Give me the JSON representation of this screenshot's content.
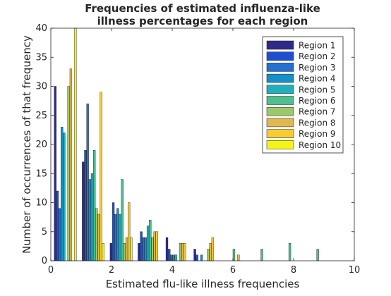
{
  "chart_data": {
    "type": "bar",
    "title": "Frequencies of estimated influenza-like\nillness percentages for each region",
    "xlabel": "Estimated flu-like illness frequencies",
    "ylabel": "Number of occurrences of that frequency",
    "xlim": [
      0,
      10
    ],
    "ylim": [
      0,
      40
    ],
    "xticks": [
      0,
      2,
      4,
      6,
      8,
      10
    ],
    "yticks": [
      0,
      5,
      10,
      15,
      20,
      25,
      30,
      35,
      40
    ],
    "grid": false,
    "legend_position": "top-right",
    "bin_centers": [
      0.48,
      1.4,
      2.32,
      3.24,
      4.16,
      5.08,
      6.0,
      6.92,
      7.84,
      8.76
    ],
    "series": [
      {
        "name": "Region 1",
        "color": "#2e2a8a",
        "values": [
          30,
          17,
          3,
          3,
          4,
          2,
          0,
          0,
          0,
          0
        ]
      },
      {
        "name": "Region 2",
        "color": "#1f4fcf",
        "values": [
          12,
          19,
          10,
          5,
          2,
          1,
          0,
          0,
          0,
          0
        ]
      },
      {
        "name": "Region 3",
        "color": "#2270d0",
        "values": [
          9,
          27,
          8,
          4,
          1,
          0,
          0,
          0,
          0,
          0
        ]
      },
      {
        "name": "Region 4",
        "color": "#1590c8",
        "values": [
          23,
          14,
          9,
          4,
          1,
          1,
          0,
          0,
          0,
          0
        ]
      },
      {
        "name": "Region 5",
        "color": "#1fb0bc",
        "values": [
          22,
          15,
          8,
          6,
          1,
          0,
          0,
          0,
          0,
          0
        ]
      },
      {
        "name": "Region 6",
        "color": "#4fbf8e",
        "values": [
          0,
          19,
          14,
          7,
          0,
          0,
          2,
          2,
          3,
          2
        ]
      },
      {
        "name": "Region 7",
        "color": "#9cc86a",
        "values": [
          30,
          9,
          3,
          4,
          3,
          2,
          0,
          0,
          0,
          0
        ]
      },
      {
        "name": "Region 8",
        "color": "#e0b850",
        "values": [
          33,
          8,
          4,
          5,
          3,
          3,
          1,
          0,
          0,
          0
        ]
      },
      {
        "name": "Region 9",
        "color": "#f8cc30",
        "values": [
          0,
          29,
          10,
          5,
          3,
          4,
          0,
          0,
          0,
          0
        ]
      },
      {
        "name": "Region 10",
        "color": "#f5f514",
        "values": [
          40,
          3,
          4,
          0,
          0,
          0,
          0,
          0,
          0,
          0
        ]
      }
    ]
  }
}
